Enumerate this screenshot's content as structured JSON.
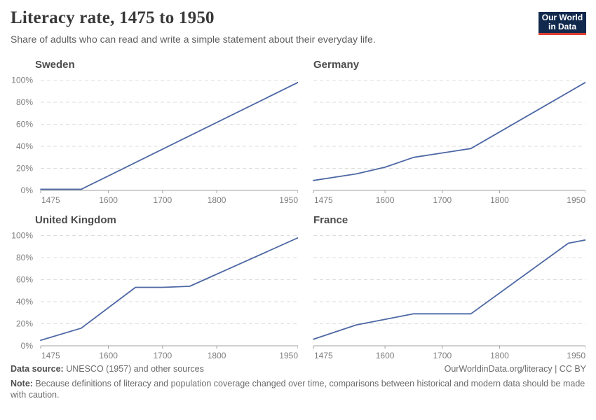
{
  "header": {
    "title": "Literacy rate, 1475 to 1950",
    "subtitle": "Share of adults who can read and write a simple statement about their everyday life.",
    "logo": {
      "line1": "Our World",
      "line2": "in Data",
      "bg": "#12294e",
      "accent": "#dc3e32"
    }
  },
  "chart_data": {
    "type": "line",
    "title": "Literacy rate, 1475 to 1950",
    "xlabel": "",
    "ylabel": "",
    "xlim": [
      1475,
      1950
    ],
    "ylim": [
      0,
      100
    ],
    "x_ticks": [
      1475,
      1600,
      1700,
      1800,
      1950
    ],
    "y_ticks": [
      0,
      20,
      40,
      60,
      80,
      100
    ],
    "y_tick_suffix": "%",
    "grid": "horizontal-dashed",
    "legend": "none",
    "line_color": "#4d68a4",
    "grid_color": "#dddddd",
    "axis_color": "#a1a1a1",
    "tick_label_color": "#7d7d7d",
    "facets": [
      {
        "title": "Sweden",
        "x": [
          1475,
          1550,
          1950
        ],
        "y": [
          1,
          1,
          98
        ]
      },
      {
        "title": "Germany",
        "x": [
          1475,
          1550,
          1600,
          1650,
          1700,
          1750,
          1950
        ],
        "y": [
          9,
          15,
          21,
          30,
          34,
          38,
          98
        ]
      },
      {
        "title": "United Kingdom",
        "x": [
          1475,
          1550,
          1650,
          1700,
          1750,
          1950
        ],
        "y": [
          5,
          16,
          53,
          53,
          54,
          98
        ]
      },
      {
        "title": "France",
        "x": [
          1475,
          1550,
          1600,
          1650,
          1700,
          1750,
          1920,
          1950
        ],
        "y": [
          6,
          19,
          24,
          29,
          29,
          29,
          93,
          96
        ]
      }
    ]
  },
  "footer": {
    "source_label": "Data source:",
    "source_text": " UNESCO (1957) and other sources",
    "link": "OurWorldinData.org/literacy | CC BY",
    "note_label": "Note:",
    "note_text": " Because definitions of literacy and population coverage changed over time, comparisons between historical and modern data should be made with caution."
  }
}
